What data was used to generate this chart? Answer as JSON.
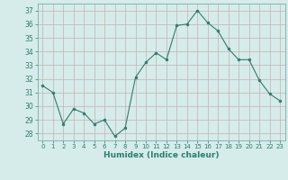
{
  "x": [
    0,
    1,
    2,
    3,
    4,
    5,
    6,
    7,
    8,
    9,
    10,
    11,
    12,
    13,
    14,
    15,
    16,
    17,
    18,
    19,
    20,
    21,
    22,
    23
  ],
  "y": [
    31.5,
    31.0,
    28.7,
    29.8,
    29.5,
    28.7,
    29.0,
    27.8,
    28.4,
    32.1,
    33.2,
    33.9,
    33.4,
    35.9,
    36.0,
    37.0,
    36.1,
    35.5,
    34.2,
    33.4,
    33.4,
    31.9,
    30.9,
    30.4
  ],
  "line_color": "#2e7d6e",
  "marker": "o",
  "marker_size": 2.0,
  "bg_color": "#d5ecea",
  "grid_color_major": "#c8b8b8",
  "grid_color_minor": "#d8e8e8",
  "xlabel": "Humidex (Indice chaleur)",
  "ylabel_ticks": [
    28,
    29,
    30,
    31,
    32,
    33,
    34,
    35,
    36,
    37
  ],
  "xlim": [
    -0.5,
    23.5
  ],
  "ylim": [
    27.5,
    37.5
  ],
  "xtick_labels": [
    "0",
    "1",
    "2",
    "3",
    "4",
    "5",
    "6",
    "7",
    "8",
    "9",
    "10",
    "11",
    "12",
    "13",
    "14",
    "15",
    "16",
    "17",
    "18",
    "19",
    "20",
    "21",
    "22",
    "23"
  ]
}
